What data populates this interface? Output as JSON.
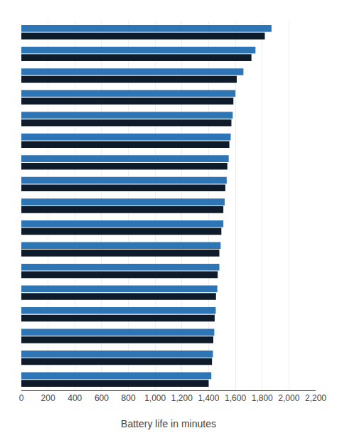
{
  "chart_data": {
    "type": "bar",
    "orientation": "horizontal",
    "xlabel": "Battery life in minutes",
    "categories": [
      null,
      null,
      null,
      null,
      null,
      null,
      null,
      null,
      null,
      null,
      null,
      null,
      null,
      null,
      null,
      null,
      null
    ],
    "series": [
      {
        "color": "#2e75b6",
        "values": [
          1870,
          1750,
          1660,
          1600,
          1580,
          1565,
          1550,
          1535,
          1520,
          1510,
          1490,
          1480,
          1465,
          1453,
          1442,
          1432,
          1420
        ]
      },
      {
        "color": "#0d1b2a",
        "values": [
          1820,
          1720,
          1610,
          1585,
          1570,
          1555,
          1540,
          1525,
          1510,
          1495,
          1480,
          1468,
          1455,
          1445,
          1435,
          1425,
          1400
        ]
      }
    ],
    "xlim": [
      0,
      2200
    ],
    "xticks": [
      0,
      200,
      400,
      600,
      800,
      {
        "value": 1000,
        "label": "1,000"
      },
      {
        "value": 1200,
        "label": "1,200"
      },
      {
        "value": 1400,
        "label": "1,400"
      },
      {
        "value": 1600,
        "label": "1,600"
      },
      {
        "value": 1800,
        "label": "1,800"
      },
      {
        "value": 2000,
        "label": "2,000"
      },
      {
        "value": 2200,
        "label": "2,200"
      }
    ],
    "grid": true,
    "tick_labels": "x"
  }
}
